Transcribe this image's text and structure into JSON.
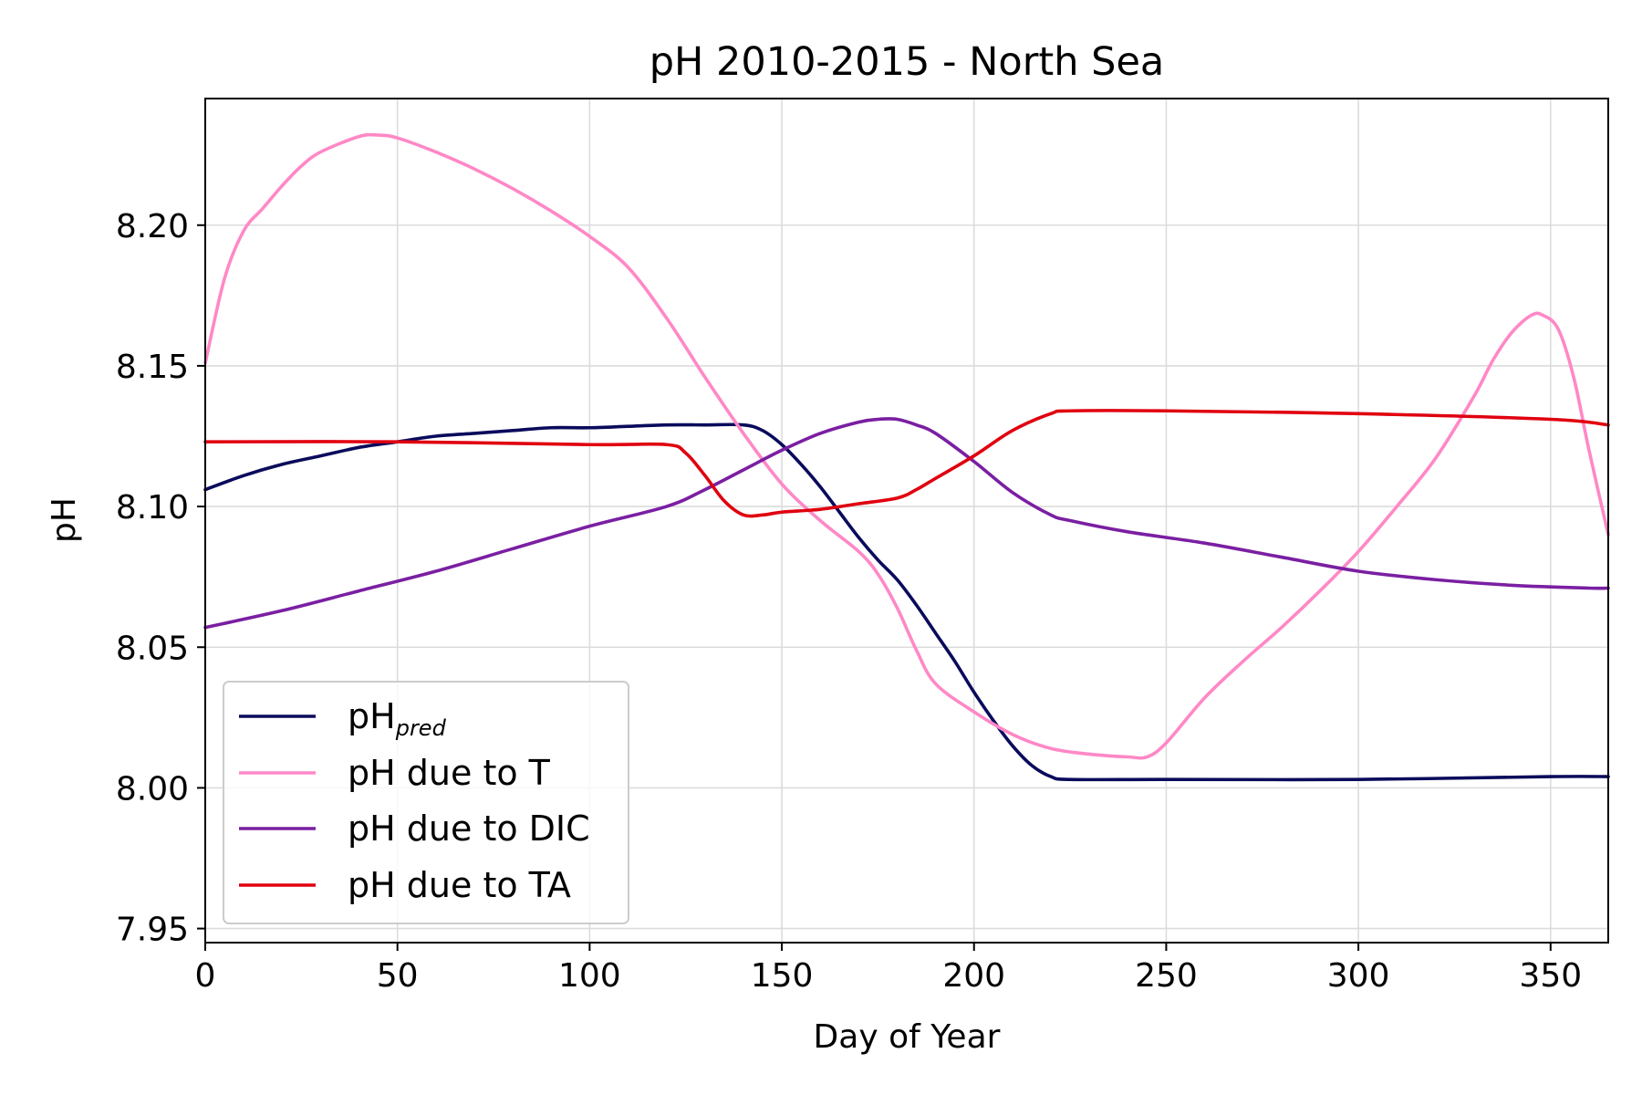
{
  "chart_data": {
    "type": "line",
    "title": "pH 2010-2015 - North Sea",
    "xlabel": "Day of Year",
    "ylabel": "pH",
    "xlim": [
      0,
      365
    ],
    "ylim": [
      7.945,
      8.245
    ],
    "xticks": [
      0,
      50,
      100,
      150,
      200,
      250,
      300,
      350
    ],
    "xtick_labels": [
      "0",
      "50",
      "100",
      "150",
      "200",
      "250",
      "300",
      "350"
    ],
    "yticks": [
      7.95,
      8.0,
      8.05,
      8.1,
      8.15,
      8.2
    ],
    "ytick_labels": [
      "7.95",
      "8.00",
      "8.05",
      "8.10",
      "8.15",
      "8.20"
    ],
    "grid": true,
    "legend_position": "lower-left",
    "series": [
      {
        "name": "pH",
        "name_subscript": "pred",
        "color": "#0b0b5c",
        "x": [
          0,
          10,
          20,
          30,
          40,
          50,
          60,
          70,
          80,
          90,
          100,
          110,
          120,
          130,
          140,
          145,
          150,
          155,
          160,
          165,
          170,
          175,
          180,
          185,
          190,
          195,
          200,
          205,
          210,
          215,
          220,
          225,
          250,
          300,
          350,
          365
        ],
        "y": [
          8.106,
          8.111,
          8.115,
          8.118,
          8.121,
          8.123,
          8.125,
          8.126,
          8.127,
          8.128,
          8.128,
          8.1285,
          8.129,
          8.129,
          8.129,
          8.127,
          8.122,
          8.115,
          8.107,
          8.098,
          8.089,
          8.081,
          8.074,
          8.065,
          8.055,
          8.045,
          8.034,
          8.024,
          8.015,
          8.008,
          8.004,
          8.003,
          8.003,
          8.003,
          8.004,
          8.004
        ]
      },
      {
        "name": "pH due to T",
        "color": "#ff88c6",
        "x": [
          0,
          5,
          10,
          15,
          20,
          25,
          30,
          40,
          45,
          50,
          60,
          70,
          80,
          90,
          100,
          110,
          120,
          130,
          140,
          150,
          160,
          170,
          175,
          180,
          185,
          190,
          200,
          210,
          220,
          230,
          240,
          245,
          250,
          260,
          270,
          280,
          290,
          300,
          310,
          320,
          330,
          335,
          340,
          345,
          348,
          352,
          356,
          360,
          365
        ],
        "y": [
          8.151,
          8.181,
          8.198,
          8.206,
          8.214,
          8.221,
          8.226,
          8.2315,
          8.232,
          8.231,
          8.226,
          8.22,
          8.213,
          8.205,
          8.196,
          8.185,
          8.167,
          8.146,
          8.126,
          8.108,
          8.095,
          8.084,
          8.076,
          8.064,
          8.049,
          8.037,
          8.027,
          8.019,
          8.014,
          8.012,
          8.011,
          8.011,
          8.016,
          8.032,
          8.045,
          8.057,
          8.07,
          8.084,
          8.1,
          8.117,
          8.139,
          8.152,
          8.162,
          8.168,
          8.168,
          8.163,
          8.146,
          8.12,
          8.09
        ]
      },
      {
        "name": "pH due to DIC",
        "color": "#7a1fa2",
        "x": [
          0,
          20,
          40,
          60,
          80,
          100,
          120,
          130,
          140,
          150,
          160,
          170,
          175,
          180,
          185,
          190,
          200,
          210,
          220,
          225,
          240,
          260,
          280,
          300,
          320,
          340,
          360,
          365
        ],
        "y": [
          8.057,
          8.063,
          8.07,
          8.077,
          8.085,
          8.093,
          8.1,
          8.106,
          8.113,
          8.12,
          8.126,
          8.13,
          8.131,
          8.131,
          8.129,
          8.126,
          8.116,
          8.105,
          8.097,
          8.095,
          8.091,
          8.087,
          8.082,
          8.077,
          8.074,
          8.072,
          8.071,
          8.071
        ]
      },
      {
        "name": "pH due to TA",
        "color": "#e0000f",
        "x": [
          0,
          50,
          100,
          120,
          125,
          130,
          135,
          140,
          145,
          150,
          160,
          170,
          180,
          185,
          190,
          200,
          210,
          220,
          225,
          250,
          300,
          350,
          365
        ],
        "y": [
          8.123,
          8.123,
          8.122,
          8.122,
          8.119,
          8.111,
          8.102,
          8.097,
          8.097,
          8.098,
          8.099,
          8.101,
          8.103,
          8.106,
          8.11,
          8.118,
          8.127,
          8.133,
          8.134,
          8.134,
          8.133,
          8.131,
          8.129
        ]
      }
    ]
  }
}
